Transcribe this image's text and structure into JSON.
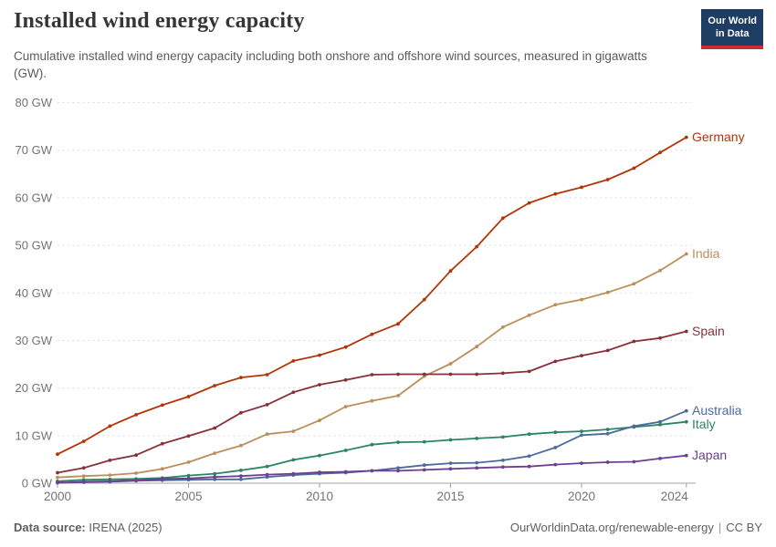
{
  "header": {
    "title": "Installed wind energy capacity",
    "subtitle": "Cumulative installed wind energy capacity including both onshore and offshore wind sources, measured in gigawatts (GW).",
    "logo_line1": "Our World",
    "logo_line2": "in Data"
  },
  "footer": {
    "source_label": "Data source:",
    "source_value": " IRENA (2025)",
    "link": "OurWorldinData.org/renewable-energy",
    "separator": "|",
    "license": "CC BY"
  },
  "colors": {
    "logo_bg": "#1d3d63",
    "logo_accent": "#cb2d30",
    "grid": "#dcdcdc",
    "axis": "#a3a3a3",
    "tick_text": "#737373"
  },
  "chart_data": {
    "type": "line",
    "title": "Installed wind energy capacity",
    "unit": "GW",
    "grid": "dashed-horizontal",
    "legend_position": "line-end-labels",
    "ylim": [
      0,
      80
    ],
    "y_ticks": [
      0,
      10,
      20,
      30,
      40,
      50,
      60,
      70,
      80
    ],
    "y_tick_suffix": " GW",
    "x_tick_years": [
      2000,
      2005,
      2010,
      2015,
      2020,
      2024
    ],
    "x": [
      2000,
      2001,
      2002,
      2003,
      2004,
      2005,
      2006,
      2007,
      2008,
      2009,
      2010,
      2011,
      2012,
      2013,
      2014,
      2015,
      2016,
      2017,
      2018,
      2019,
      2020,
      2021,
      2022,
      2023,
      2024
    ],
    "series": [
      {
        "name": "Germany",
        "color": "#B13507",
        "values": [
          6.1,
          8.8,
          12.0,
          14.4,
          16.4,
          18.2,
          20.5,
          22.2,
          22.8,
          25.7,
          26.9,
          28.6,
          31.3,
          33.5,
          38.6,
          44.6,
          49.7,
          55.7,
          58.9,
          60.8,
          62.2,
          63.8,
          66.2,
          69.5,
          72.7
        ]
      },
      {
        "name": "India",
        "color": "#BC8E5A",
        "values": [
          1.2,
          1.5,
          1.7,
          2.1,
          3.0,
          4.4,
          6.3,
          7.9,
          10.3,
          10.9,
          13.2,
          16.1,
          17.3,
          18.4,
          22.5,
          25.1,
          28.7,
          32.8,
          35.3,
          37.5,
          38.6,
          40.1,
          41.9,
          44.7,
          48.2
        ]
      },
      {
        "name": "Spain",
        "color": "#883039",
        "values": [
          2.2,
          3.2,
          4.8,
          5.9,
          8.3,
          9.9,
          11.6,
          14.8,
          16.5,
          19.1,
          20.7,
          21.7,
          22.8,
          22.9,
          22.9,
          22.9,
          22.9,
          23.1,
          23.5,
          25.6,
          26.8,
          27.9,
          29.8,
          30.5,
          31.9
        ]
      },
      {
        "name": "Italy",
        "color": "#2C8465",
        "values": [
          0.4,
          0.7,
          0.8,
          0.9,
          1.1,
          1.6,
          2.0,
          2.7,
          3.5,
          4.9,
          5.8,
          6.9,
          8.1,
          8.6,
          8.7,
          9.1,
          9.4,
          9.7,
          10.3,
          10.7,
          10.9,
          11.3,
          11.8,
          12.3,
          12.9
        ]
      },
      {
        "name": "Australia",
        "color": "#4C6A9C",
        "values": [
          0.1,
          0.2,
          0.3,
          0.5,
          0.6,
          0.7,
          0.8,
          0.8,
          1.3,
          1.7,
          2.0,
          2.2,
          2.6,
          3.2,
          3.8,
          4.2,
          4.3,
          4.8,
          5.7,
          7.5,
          10.1,
          10.4,
          12.0,
          12.9,
          15.2
        ]
      },
      {
        "name": "Japan",
        "color": "#6D3E91",
        "values": [
          0.1,
          0.3,
          0.4,
          0.6,
          0.9,
          1.0,
          1.3,
          1.5,
          1.8,
          2.0,
          2.3,
          2.4,
          2.6,
          2.6,
          2.8,
          3.0,
          3.2,
          3.4,
          3.5,
          3.9,
          4.2,
          4.4,
          4.5,
          5.2,
          5.8
        ]
      }
    ]
  }
}
